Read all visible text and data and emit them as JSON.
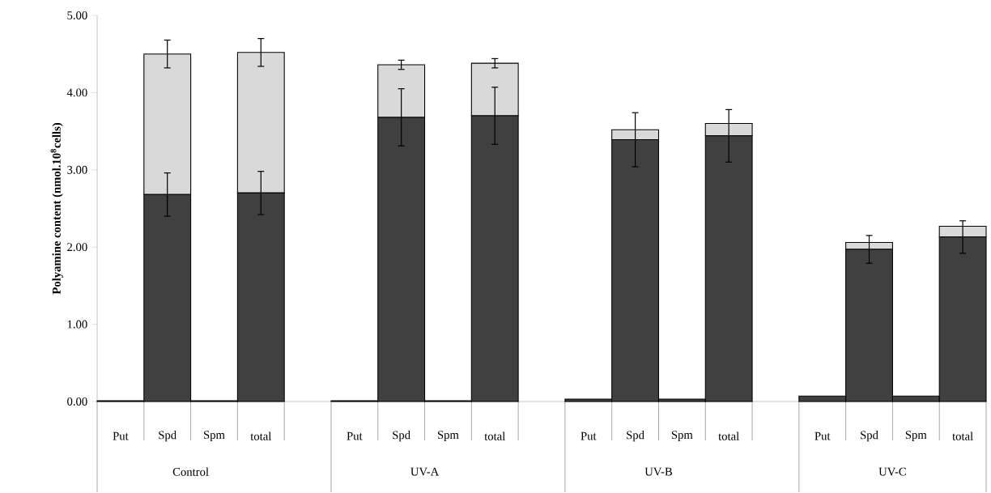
{
  "chart_data": {
    "type": "bar",
    "stacked": true,
    "ylabel": "Polyamine content (nmol.10$^{8}$cells)",
    "categories": [
      "Put",
      "Spd",
      "Spm",
      "total",
      null,
      "Put",
      "Spd",
      "Spm",
      "total",
      null,
      "Put",
      "Spd",
      "Spm",
      "total",
      null,
      "Put",
      "Spd",
      "Spm",
      "total"
    ],
    "series": [
      {
        "color": "#404040",
        "values": [
          0.01,
          2.68,
          0.01,
          2.7,
          null,
          0.01,
          3.68,
          0.01,
          3.7,
          null,
          0.03,
          3.39,
          0.03,
          3.44,
          null,
          0.07,
          1.97,
          0.07,
          2.13
        ],
        "errors": [
          null,
          0.28,
          null,
          0.28,
          null,
          null,
          0.37,
          null,
          0.37,
          null,
          null,
          0.35,
          null,
          0.34,
          null,
          null,
          0.18,
          null,
          0.21
        ]
      },
      {
        "color": "#d9d9d9",
        "values": [
          null,
          1.82,
          null,
          1.82,
          null,
          null,
          0.68,
          null,
          0.68,
          null,
          null,
          0.13,
          null,
          0.16,
          null,
          null,
          0.09,
          null,
          0.14
        ],
        "errors": [
          null,
          0.18,
          null,
          0.18,
          null,
          null,
          0.06,
          null,
          0.06,
          null,
          null,
          null,
          null,
          null,
          null,
          null,
          null,
          null,
          null
        ]
      }
    ],
    "annotations": [
      "Control",
      "UV-A",
      "UV-B",
      "UV-C"
    ],
    "ylim": [
      0,
      5
    ],
    "yticks": [
      {
        "value": 0,
        "label": "0.00"
      },
      {
        "value": 1,
        "label": "1.00"
      },
      {
        "value": 2,
        "label": "2.00"
      },
      {
        "value": 3,
        "label": "3.00"
      },
      {
        "value": 4,
        "label": "4.00"
      },
      {
        "value": 5,
        "label": "5.00"
      }
    ],
    "grid": false
  }
}
